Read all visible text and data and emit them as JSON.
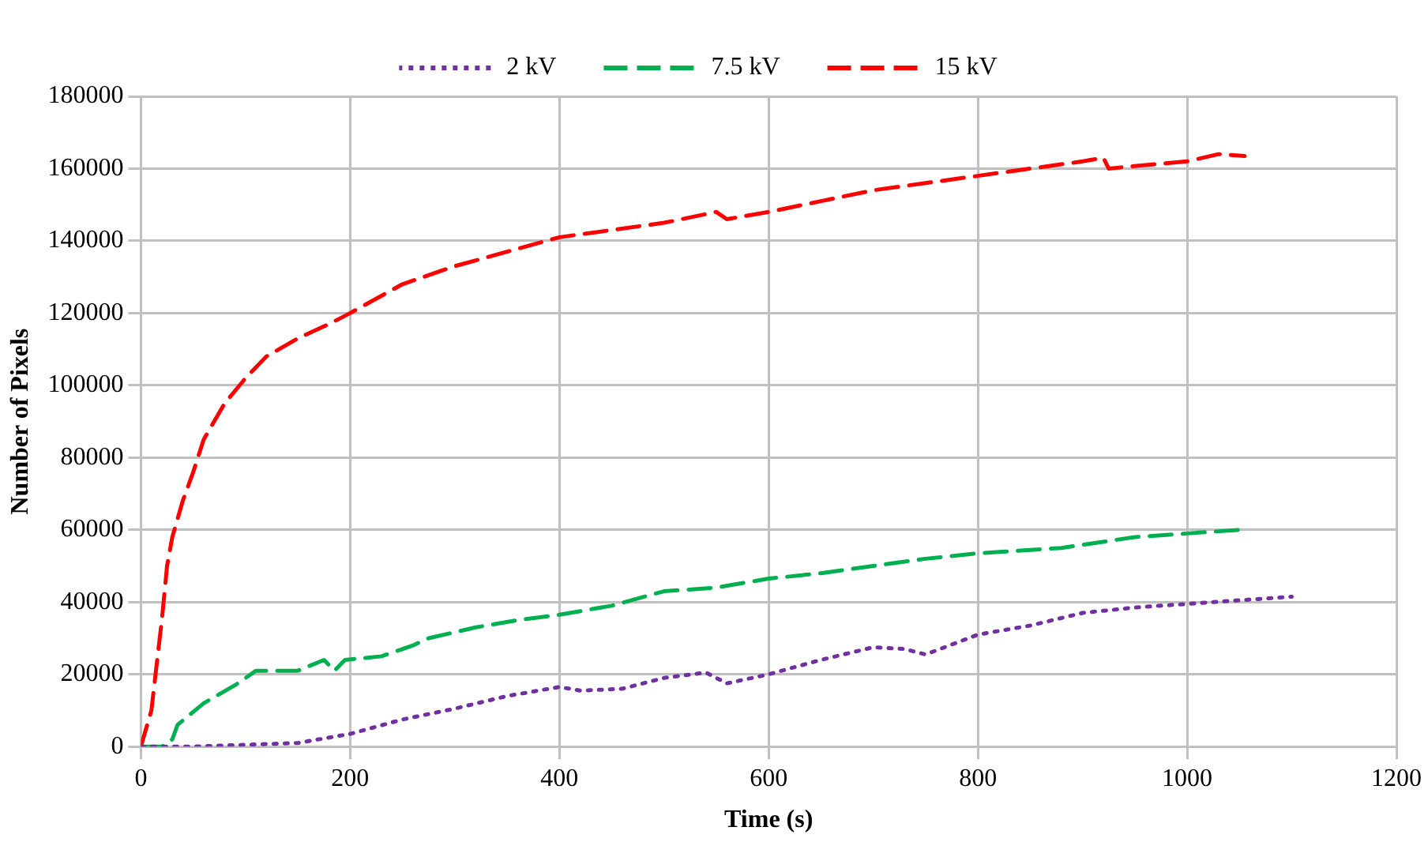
{
  "chart_data": {
    "type": "line",
    "xlabel": "Time (s)",
    "ylabel": "Number of Pixels",
    "xlim": [
      0,
      1200
    ],
    "xticks": [
      0,
      200,
      400,
      600,
      800,
      1000,
      1200
    ],
    "ylim": [
      0,
      180000
    ],
    "yticks": [
      0,
      20000,
      40000,
      60000,
      80000,
      100000,
      120000,
      140000,
      160000,
      180000
    ],
    "grid": true,
    "legend": "top",
    "marker": "none",
    "series": [
      {
        "name": "2 kV",
        "color": "#7030a0",
        "line_style": "dotted",
        "x": [
          0,
          50,
          100,
          150,
          200,
          250,
          300,
          350,
          400,
          420,
          460,
          500,
          540,
          560,
          600,
          650,
          700,
          730,
          750,
          800,
          850,
          900,
          950,
          1000,
          1050,
          1100
        ],
        "values": [
          0,
          0,
          500,
          1000,
          3500,
          7500,
          10500,
          14000,
          16500,
          15500,
          16000,
          19000,
          20500,
          17500,
          20000,
          24000,
          27500,
          27000,
          25500,
          31000,
          33500,
          37000,
          38500,
          39500,
          40500,
          41500
        ]
      },
      {
        "name": "7.5 kV",
        "color": "#00b050",
        "line_style": "dashed",
        "x": [
          0,
          20,
          30,
          35,
          60,
          90,
          110,
          150,
          175,
          185,
          195,
          230,
          260,
          275,
          320,
          360,
          400,
          450,
          500,
          550,
          600,
          650,
          700,
          750,
          800,
          880,
          950,
          1000,
          1050
        ],
        "values": [
          0,
          0,
          2000,
          6000,
          12000,
          17000,
          21000,
          21000,
          24000,
          21000,
          24000,
          25000,
          28000,
          30000,
          33000,
          35000,
          36500,
          39000,
          43000,
          44000,
          46500,
          48000,
          50000,
          52000,
          53500,
          55000,
          58000,
          59000,
          60000
        ]
      },
      {
        "name": "15 kV",
        "color": "#ff0000",
        "line_style": "dashed",
        "x": [
          0,
          10,
          20,
          25,
          30,
          40,
          50,
          60,
          70,
          80,
          100,
          120,
          150,
          180,
          200,
          250,
          300,
          350,
          400,
          450,
          500,
          550,
          560,
          600,
          650,
          700,
          750,
          800,
          850,
          900,
          920,
          925,
          960,
          1000,
          1030,
          1055
        ],
        "values": [
          0,
          10000,
          35000,
          50000,
          58000,
          68000,
          76000,
          85000,
          90000,
          95000,
          102000,
          108000,
          113000,
          117000,
          120000,
          128000,
          133000,
          137000,
          141000,
          143000,
          145000,
          148000,
          146000,
          148000,
          151000,
          154000,
          156000,
          158000,
          160000,
          162000,
          163000,
          160000,
          161000,
          162000,
          164000,
          163500
        ]
      }
    ]
  }
}
